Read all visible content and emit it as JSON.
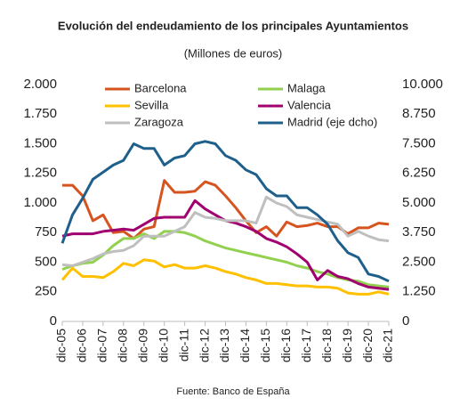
{
  "chart_data": {
    "type": "line",
    "title": "Evolución del endeudamiento de los principales Ayuntamientos",
    "subtitle": "(Millones de euros)",
    "source": "Fuente: Banco de España",
    "categories": [
      "dic-05",
      null,
      "dic-06",
      null,
      "dic-07",
      null,
      "dic-08",
      null,
      "dic-09",
      null,
      "dic-10",
      null,
      "dic-11",
      null,
      "dic-12",
      null,
      "dic-13",
      null,
      "dic-14",
      null,
      "dic-15",
      null,
      "dic-16",
      null,
      "dic-17",
      null,
      "dic-18",
      null,
      "dic-19",
      null,
      "dic-20",
      null,
      "dic-21"
    ],
    "ylim": [
      0,
      2000
    ],
    "yticks": [
      0,
      250,
      500,
      750,
      {
        "value": 1000,
        "label": "1.000"
      },
      {
        "value": 1250,
        "label": "1.250"
      },
      {
        "value": 1500,
        "label": "1.500"
      },
      {
        "value": 1750,
        "label": "1.750"
      },
      {
        "value": 2000,
        "label": "2.000"
      }
    ],
    "y2lim": [
      0,
      10000
    ],
    "y2ticks": [
      0,
      {
        "value": 1250,
        "label": "1.250"
      },
      {
        "value": 2500,
        "label": "2.500"
      },
      {
        "value": 3750,
        "label": "3.750"
      },
      {
        "value": 5000,
        "label": "5.000"
      },
      {
        "value": 6250,
        "label": "6.250"
      },
      {
        "value": 7500,
        "label": "7.500"
      },
      {
        "value": 8750,
        "label": "8.750"
      },
      {
        "value": 10000,
        "label": "10.000"
      }
    ],
    "series": [
      {
        "name": "Barcelona",
        "color": "#d6541f",
        "values": [
          1150,
          1150,
          1060,
          850,
          900,
          750,
          760,
          700,
          780,
          800,
          1190,
          1090,
          1090,
          1100,
          1180,
          1150,
          1060,
          960,
          850,
          750,
          800,
          720,
          840,
          800,
          810,
          830,
          800,
          800,
          740,
          790,
          790,
          830,
          820
        ]
      },
      {
        "name": "Malaga",
        "color": "#92d050",
        "values": [
          440,
          470,
          490,
          500,
          560,
          640,
          700,
          700,
          740,
          700,
          760,
          760,
          750,
          720,
          680,
          650,
          620,
          600,
          580,
          560,
          540,
          520,
          500,
          470,
          450,
          420,
          400,
          370,
          350,
          340,
          310,
          300,
          290
        ]
      },
      {
        "name": "Sevilla",
        "color": "#ffc000",
        "values": [
          350,
          450,
          380,
          380,
          370,
          420,
          490,
          470,
          520,
          510,
          460,
          480,
          450,
          450,
          470,
          450,
          420,
          400,
          370,
          350,
          320,
          320,
          310,
          300,
          300,
          290,
          290,
          280,
          240,
          230,
          230,
          250,
          230
        ]
      },
      {
        "name": "Valencia",
        "color": "#a0006f",
        "values": [
          720,
          740,
          740,
          740,
          760,
          770,
          780,
          770,
          820,
          870,
          880,
          880,
          880,
          1020,
          950,
          900,
          850,
          830,
          800,
          760,
          700,
          670,
          630,
          570,
          500,
          350,
          430,
          380,
          360,
          320,
          290,
          280,
          270
        ]
      },
      {
        "name": "Zaragoza",
        "color": "#bfbfbf",
        "values": [
          480,
          470,
          500,
          530,
          570,
          590,
          600,
          640,
          720,
          720,
          720,
          760,
          800,
          920,
          880,
          870,
          850,
          850,
          850,
          830,
          1050,
          1000,
          970,
          900,
          880,
          860,
          840,
          820,
          720,
          760,
          720,
          690,
          680
        ]
      },
      {
        "name": "Madrid (eje dcho)",
        "color": "#1f5f8b",
        "axis": "y2",
        "values": [
          3300,
          4500,
          5200,
          6000,
          6300,
          6600,
          6800,
          7500,
          7300,
          7300,
          6600,
          6900,
          7000,
          7500,
          7600,
          7500,
          7000,
          6800,
          6400,
          6200,
          5600,
          5300,
          5300,
          4800,
          4800,
          4500,
          4100,
          3400,
          2900,
          2700,
          2000,
          1900,
          1700
        ]
      }
    ]
  }
}
